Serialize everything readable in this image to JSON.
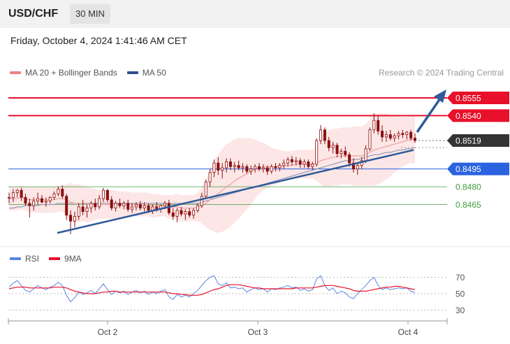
{
  "header": {
    "symbol": "USD/CHF",
    "timeframe": "30 MIN"
  },
  "datetime": "Friday, October 4, 2024 1:41:46 AM CET",
  "legend": {
    "ma20_label": "MA 20 + Bollinger Bands",
    "ma20_color": "#f08080",
    "ma50_label": "MA 50",
    "ma50_color": "#2f4f8f"
  },
  "credit": "Research © 2024 Trading Central",
  "chart_data": {
    "type": "candlestick",
    "x_ticks": [
      "Oct 2",
      "Oct 3",
      "Oct 4"
    ],
    "ylim": [
      0.8434,
      0.8568
    ],
    "levels": [
      {
        "value": 0.8555,
        "label": "0.8555",
        "color": "#e8102a",
        "kind": "resistance",
        "style": "filled"
      },
      {
        "value": 0.854,
        "label": "0.8540",
        "color": "#e8102a",
        "kind": "resistance",
        "style": "filled"
      },
      {
        "value": 0.8519,
        "label": "0.8519",
        "color": "#333333",
        "kind": "last-price",
        "style": "filled"
      },
      {
        "value": 0.8495,
        "label": "0.8495",
        "color": "#2a62e0",
        "kind": "pivot",
        "style": "filled"
      },
      {
        "value": 0.848,
        "label": "0.8480",
        "color": "#3f9e3f",
        "kind": "support",
        "style": "text"
      },
      {
        "value": 0.8465,
        "label": "0.8465",
        "color": "#3f9e3f",
        "kind": "support",
        "style": "text"
      }
    ],
    "trendline": {
      "from": 0.8441,
      "to": 0.8511
    },
    "candles": [
      [
        0.8471,
        0.8475,
        0.8466,
        0.8471
      ],
      [
        0.8471,
        0.8478,
        0.8467,
        0.8475
      ],
      [
        0.8475,
        0.8478,
        0.8471,
        0.8477
      ],
      [
        0.8477,
        0.8479,
        0.8468,
        0.8471
      ],
      [
        0.8471,
        0.8474,
        0.8464,
        0.8466
      ],
      [
        0.8466,
        0.847,
        0.8454,
        0.8464
      ],
      [
        0.8464,
        0.8471,
        0.846,
        0.8468
      ],
      [
        0.8468,
        0.8475,
        0.8465,
        0.847
      ],
      [
        0.847,
        0.8473,
        0.8466,
        0.8467
      ],
      [
        0.8467,
        0.8471,
        0.8463,
        0.8468
      ],
      [
        0.8468,
        0.8472,
        0.8466,
        0.8471
      ],
      [
        0.8471,
        0.8476,
        0.8469,
        0.8474
      ],
      [
        0.8474,
        0.848,
        0.8472,
        0.8478
      ],
      [
        0.8478,
        0.8481,
        0.847,
        0.8472
      ],
      [
        0.8472,
        0.8474,
        0.8452,
        0.8456
      ],
      [
        0.8456,
        0.846,
        0.844,
        0.8451
      ],
      [
        0.8451,
        0.8459,
        0.8446,
        0.8455
      ],
      [
        0.8455,
        0.8466,
        0.8452,
        0.8463
      ],
      [
        0.8463,
        0.8469,
        0.8456,
        0.8459
      ],
      [
        0.8459,
        0.8465,
        0.8454,
        0.8462
      ],
      [
        0.8462,
        0.8468,
        0.8458,
        0.8466
      ],
      [
        0.8466,
        0.847,
        0.846,
        0.8463
      ],
      [
        0.8463,
        0.8473,
        0.8461,
        0.847
      ],
      [
        0.847,
        0.8479,
        0.8467,
        0.8477
      ],
      [
        0.8477,
        0.8478,
        0.8467,
        0.8469
      ],
      [
        0.8469,
        0.8472,
        0.846,
        0.8462
      ],
      [
        0.8462,
        0.8468,
        0.8459,
        0.8466
      ],
      [
        0.8466,
        0.847,
        0.8462,
        0.8464
      ],
      [
        0.8464,
        0.8468,
        0.8461,
        0.8466
      ],
      [
        0.8466,
        0.8469,
        0.8459,
        0.8461
      ],
      [
        0.8461,
        0.8466,
        0.8458,
        0.8463
      ],
      [
        0.8463,
        0.8467,
        0.846,
        0.8465
      ],
      [
        0.8465,
        0.8468,
        0.846,
        0.8462
      ],
      [
        0.8462,
        0.8467,
        0.8459,
        0.8464
      ],
      [
        0.8464,
        0.8466,
        0.8458,
        0.846
      ],
      [
        0.846,
        0.8465,
        0.8457,
        0.8463
      ],
      [
        0.8463,
        0.8467,
        0.8459,
        0.8461
      ],
      [
        0.8461,
        0.8465,
        0.8458,
        0.8464
      ],
      [
        0.8464,
        0.8468,
        0.8461,
        0.8466
      ],
      [
        0.8466,
        0.8469,
        0.8456,
        0.8458
      ],
      [
        0.8458,
        0.8462,
        0.8452,
        0.8455
      ],
      [
        0.8455,
        0.8462,
        0.845,
        0.846
      ],
      [
        0.846,
        0.8463,
        0.8455,
        0.8457
      ],
      [
        0.8457,
        0.8461,
        0.8452,
        0.8459
      ],
      [
        0.8459,
        0.8462,
        0.8454,
        0.8456
      ],
      [
        0.8456,
        0.8462,
        0.8453,
        0.846
      ],
      [
        0.846,
        0.8466,
        0.8458,
        0.8464
      ],
      [
        0.8464,
        0.8475,
        0.8462,
        0.8472
      ],
      [
        0.8472,
        0.8486,
        0.847,
        0.8484
      ],
      [
        0.8484,
        0.8495,
        0.848,
        0.8492
      ],
      [
        0.8492,
        0.8503,
        0.8488,
        0.85
      ],
      [
        0.85,
        0.8505,
        0.849,
        0.8494
      ],
      [
        0.8494,
        0.85,
        0.8487,
        0.8496
      ],
      [
        0.8496,
        0.8504,
        0.8492,
        0.8501
      ],
      [
        0.8501,
        0.8504,
        0.8494,
        0.8497
      ],
      [
        0.8497,
        0.8501,
        0.8492,
        0.8498
      ],
      [
        0.8498,
        0.8502,
        0.8494,
        0.8496
      ],
      [
        0.8496,
        0.85,
        0.8492,
        0.8497
      ],
      [
        0.8497,
        0.8499,
        0.8491,
        0.8493
      ],
      [
        0.8493,
        0.8498,
        0.849,
        0.8495
      ],
      [
        0.8495,
        0.8499,
        0.8492,
        0.8497
      ],
      [
        0.8497,
        0.85,
        0.8493,
        0.8495
      ],
      [
        0.8495,
        0.8499,
        0.8492,
        0.8496
      ],
      [
        0.8496,
        0.8498,
        0.849,
        0.8493
      ],
      [
        0.8493,
        0.8499,
        0.8491,
        0.8497
      ],
      [
        0.8497,
        0.85,
        0.8493,
        0.8496
      ],
      [
        0.8496,
        0.85,
        0.8493,
        0.8498
      ],
      [
        0.8498,
        0.8503,
        0.8495,
        0.85
      ],
      [
        0.85,
        0.8505,
        0.8497,
        0.8503
      ],
      [
        0.8503,
        0.8506,
        0.8498,
        0.8501
      ],
      [
        0.8501,
        0.8505,
        0.8498,
        0.8502
      ],
      [
        0.8502,
        0.8504,
        0.8496,
        0.8499
      ],
      [
        0.8499,
        0.8503,
        0.8496,
        0.8501
      ],
      [
        0.8501,
        0.8503,
        0.8495,
        0.8497
      ],
      [
        0.8497,
        0.8501,
        0.8494,
        0.8499
      ],
      [
        0.8499,
        0.8521,
        0.8497,
        0.8519
      ],
      [
        0.8519,
        0.8532,
        0.8516,
        0.8528
      ],
      [
        0.8528,
        0.853,
        0.8516,
        0.8519
      ],
      [
        0.8519,
        0.8522,
        0.851,
        0.8513
      ],
      [
        0.8513,
        0.8518,
        0.8508,
        0.8515
      ],
      [
        0.8515,
        0.8517,
        0.8505,
        0.8508
      ],
      [
        0.8508,
        0.8512,
        0.8504,
        0.851
      ],
      [
        0.851,
        0.8514,
        0.8505,
        0.8507
      ],
      [
        0.8507,
        0.8509,
        0.8497,
        0.85
      ],
      [
        0.85,
        0.8504,
        0.8492,
        0.8495
      ],
      [
        0.8495,
        0.85,
        0.849,
        0.8498
      ],
      [
        0.8498,
        0.8505,
        0.8495,
        0.8502
      ],
      [
        0.8502,
        0.8515,
        0.85,
        0.8512
      ],
      [
        0.8512,
        0.853,
        0.851,
        0.8528
      ],
      [
        0.8528,
        0.8542,
        0.8525,
        0.8536
      ],
      [
        0.8536,
        0.854,
        0.8524,
        0.8527
      ],
      [
        0.8527,
        0.8532,
        0.8518,
        0.8522
      ],
      [
        0.8522,
        0.8527,
        0.8518,
        0.8524
      ],
      [
        0.8524,
        0.8528,
        0.8519,
        0.8521
      ],
      [
        0.8521,
        0.8525,
        0.8518,
        0.8523
      ],
      [
        0.8523,
        0.8527,
        0.852,
        0.8525
      ],
      [
        0.8525,
        0.8528,
        0.8521,
        0.8524
      ],
      [
        0.8524,
        0.8527,
        0.852,
        0.8526
      ],
      [
        0.8526,
        0.8528,
        0.8519,
        0.8521
      ],
      [
        0.8521,
        0.8525,
        0.8517,
        0.8519
      ]
    ],
    "ma20": [
      0.847,
      0.847,
      0.847,
      0.8471,
      0.847,
      0.8469,
      0.8469,
      0.8469,
      0.8469,
      0.8469,
      0.8469,
      0.8469,
      0.847,
      0.847,
      0.8469,
      0.8467,
      0.8466,
      0.8466,
      0.8466,
      0.8465,
      0.8465,
      0.8465,
      0.8465,
      0.8465,
      0.8465,
      0.8465,
      0.8465,
      0.8465,
      0.8465,
      0.8465,
      0.8465,
      0.8465,
      0.8465,
      0.8465,
      0.8465,
      0.8464,
      0.8464,
      0.8464,
      0.8464,
      0.8463,
      0.8463,
      0.8463,
      0.8462,
      0.8462,
      0.8462,
      0.8462,
      0.8463,
      0.8464,
      0.8466,
      0.8469,
      0.8472,
      0.8474,
      0.8477,
      0.848,
      0.8482,
      0.8485,
      0.8487,
      0.8489,
      0.8491,
      0.8493,
      0.8495,
      0.8496,
      0.8497,
      0.8497,
      0.8497,
      0.8497,
      0.8497,
      0.8497,
      0.8498,
      0.8498,
      0.8499,
      0.8499,
      0.8499,
      0.8499,
      0.8499,
      0.85,
      0.8502,
      0.8503,
      0.8504,
      0.8505,
      0.8505,
      0.8506,
      0.8506,
      0.8506,
      0.8506,
      0.8506,
      0.8506,
      0.8507,
      0.8509,
      0.8511,
      0.8512,
      0.8513,
      0.8514,
      0.8515,
      0.8516,
      0.8517,
      0.8518,
      0.8519,
      0.852,
      0.852
    ],
    "ma50": [
      0.8462,
      0.8462,
      0.8463,
      0.8463,
      0.8464,
      0.8464,
      0.8464,
      0.8464,
      0.8465,
      0.8465,
      0.8465,
      0.8465,
      0.8466,
      0.8466,
      0.8466,
      0.8466,
      0.8466,
      0.8466,
      0.8466,
      0.8466,
      0.8466,
      0.8466,
      0.8466,
      0.8466,
      0.8466,
      0.8466,
      0.8466,
      0.8466,
      0.8466,
      0.8466,
      0.8466,
      0.8466,
      0.8466,
      0.8466,
      0.8466,
      0.8466,
      0.8466,
      0.8466,
      0.8466,
      0.8466,
      0.8466,
      0.8466,
      0.8466,
      0.8466,
      0.8466,
      0.8466,
      0.8466,
      0.8467,
      0.8468,
      0.8469,
      0.847,
      0.8471,
      0.8472,
      0.8473,
      0.8474,
      0.8475,
      0.8476,
      0.8477,
      0.8478,
      0.8479,
      0.848,
      0.8481,
      0.8482,
      0.8483,
      0.8484,
      0.8485,
      0.8486,
      0.8487,
      0.8488,
      0.8489,
      0.849,
      0.8491,
      0.8492,
      0.8493,
      0.8494,
      0.8495,
      0.8496,
      0.8497,
      0.8498,
      0.8499,
      0.85,
      0.8501,
      0.8502,
      0.8502,
      0.8503,
      0.8503,
      0.8504,
      0.8505,
      0.8506,
      0.8507,
      0.8507,
      0.8508,
      0.8509,
      0.8509,
      0.851,
      0.8511,
      0.8511,
      0.8512,
      0.8512,
      0.8513
    ],
    "bb_width": [
      0.001,
      0.001,
      0.001,
      0.001,
      0.001,
      0.0011,
      0.0011,
      0.0011,
      0.0011,
      0.0011,
      0.0011,
      0.0011,
      0.0011,
      0.0011,
      0.0013,
      0.0016,
      0.0016,
      0.0016,
      0.0015,
      0.0015,
      0.0014,
      0.0013,
      0.0012,
      0.0012,
      0.0012,
      0.0012,
      0.0012,
      0.0011,
      0.0011,
      0.0011,
      0.001,
      0.001,
      0.001,
      0.001,
      0.001,
      0.001,
      0.001,
      0.0009,
      0.0009,
      0.001,
      0.001,
      0.0011,
      0.0011,
      0.0011,
      0.0011,
      0.0011,
      0.0012,
      0.0015,
      0.002,
      0.0025,
      0.003,
      0.0033,
      0.0035,
      0.0036,
      0.0036,
      0.0035,
      0.0034,
      0.0032,
      0.003,
      0.0028,
      0.0025,
      0.0022,
      0.002,
      0.0018,
      0.0016,
      0.0015,
      0.0014,
      0.0013,
      0.0012,
      0.0012,
      0.0012,
      0.0012,
      0.0012,
      0.0012,
      0.0012,
      0.0015,
      0.002,
      0.0023,
      0.0024,
      0.0024,
      0.0024,
      0.0024,
      0.0024,
      0.0024,
      0.0025,
      0.0025,
      0.0025,
      0.0026,
      0.0028,
      0.003,
      0.003,
      0.0029,
      0.0028,
      0.0026,
      0.0024,
      0.0022,
      0.0021,
      0.002,
      0.002,
      0.002
    ],
    "rsi_panel": {
      "legend": {
        "rsi_label": "RSI",
        "rsi_color": "#5a86e0",
        "ma_label": "9MA",
        "ma_color": "#e8102a"
      },
      "levels": [
        "70",
        "50",
        "30"
      ],
      "ylim": [
        20,
        80
      ],
      "rsi": [
        58,
        63,
        66,
        60,
        54,
        52,
        56,
        60,
        57,
        55,
        58,
        60,
        64,
        60,
        48,
        40,
        45,
        52,
        49,
        51,
        54,
        50,
        56,
        62,
        55,
        49,
        53,
        51,
        53,
        49,
        52,
        54,
        51,
        53,
        49,
        52,
        50,
        53,
        55,
        46,
        43,
        49,
        46,
        48,
        46,
        50,
        54,
        60,
        66,
        70,
        72,
        62,
        60,
        63,
        57,
        58,
        56,
        57,
        52,
        55,
        57,
        55,
        56,
        52,
        56,
        55,
        57,
        58,
        60,
        57,
        58,
        54,
        56,
        53,
        55,
        68,
        72,
        60,
        54,
        57,
        50,
        53,
        51,
        46,
        44,
        50,
        55,
        60,
        66,
        70,
        60,
        55,
        57,
        55,
        56,
        57,
        56,
        57,
        53,
        51
      ],
      "rsi_ma": [
        56,
        57,
        58,
        58,
        58,
        57,
        57,
        57,
        57,
        57,
        57,
        58,
        58,
        58,
        57,
        55,
        53,
        52,
        51,
        50,
        50,
        50,
        51,
        52,
        52,
        53,
        53,
        52,
        52,
        52,
        52,
        52,
        52,
        52,
        52,
        52,
        52,
        52,
        52,
        51,
        50,
        50,
        49,
        49,
        48,
        48,
        48,
        49,
        51,
        53,
        55,
        56,
        58,
        60,
        61,
        61,
        61,
        60,
        59,
        58,
        57,
        57,
        56,
        56,
        56,
        56,
        56,
        56,
        56,
        56,
        57,
        57,
        57,
        57,
        57,
        58,
        59,
        60,
        60,
        60,
        59,
        58,
        57,
        56,
        54,
        53,
        53,
        53,
        54,
        55,
        56,
        57,
        58,
        58,
        59,
        59,
        58,
        57,
        56,
        55
      ]
    }
  }
}
